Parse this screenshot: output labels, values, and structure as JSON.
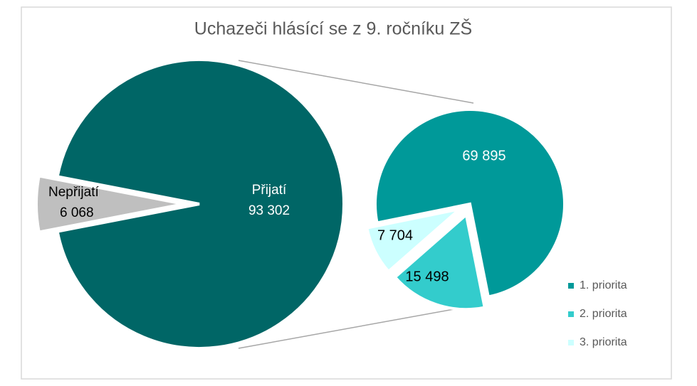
{
  "chart_data": {
    "type": "pie",
    "title": "Uchazeči hlásící se z 9. ročníku ZŠ",
    "main": {
      "categories": [
        "Nepřijatí",
        "Přijatí"
      ],
      "values": [
        6068,
        93302
      ],
      "value_labels": [
        "6 068",
        "93 302"
      ],
      "colors": [
        "#bfbfbf",
        "#006666"
      ]
    },
    "secondary": {
      "categories": [
        "1. priorita",
        "2. priorita",
        "3. priorita"
      ],
      "values": [
        69895,
        15498,
        7704
      ],
      "value_labels": [
        "69 895",
        "15 498",
        "7 704"
      ],
      "colors": [
        "#009999",
        "#33cccc",
        "#ccffff"
      ]
    },
    "legend": "right"
  }
}
